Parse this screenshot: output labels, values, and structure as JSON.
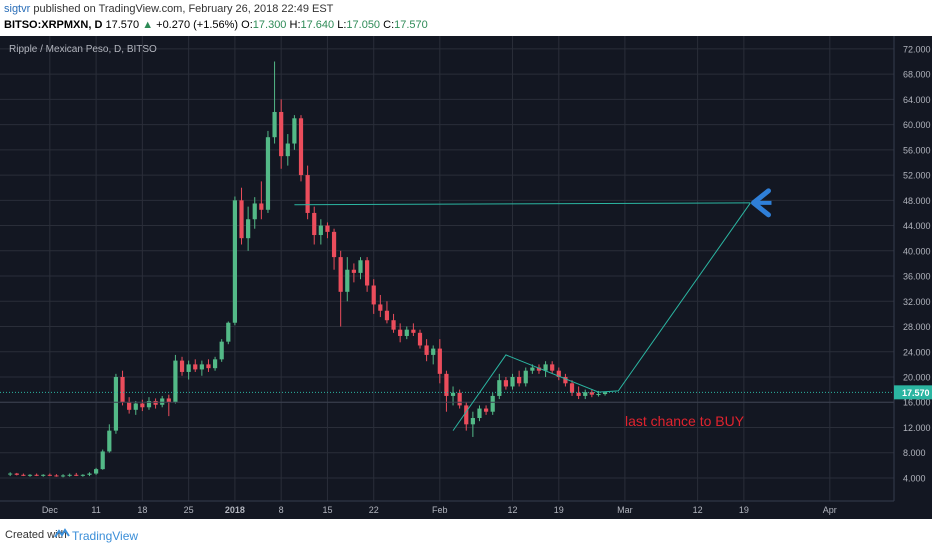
{
  "header": {
    "author": "sigtvr",
    "published_text": "published on TradingView.com, February 26, 2018 22:49 EST",
    "symbol": "BITSO:XRPMXN, D",
    "last": "17.570",
    "change": "+0.270 (+1.56%)",
    "open_label": "O:",
    "open": "17.300",
    "high_label": "H:",
    "high": "17.640",
    "low_label": "L:",
    "low": "17.050",
    "close_label": "C:",
    "close": "17.570"
  },
  "footer": {
    "created_with": "Created with",
    "brand": "TradingView"
  },
  "colors": {
    "background": "#131722",
    "up": "#53b987",
    "down": "#eb4d5c",
    "line": "#2bb5a1",
    "arrow": "#2f7fd8",
    "note": "#e0232e"
  },
  "chart_data": {
    "type": "candlestick",
    "title": "Ripple / Mexican Peso, D, BITSO",
    "ylim": [
      0,
      74
    ],
    "yticks": [
      "4.000",
      "8.000",
      "12.000",
      "16.000",
      "20.000",
      "24.000",
      "28.000",
      "32.000",
      "36.000",
      "40.000",
      "44.000",
      "48.000",
      "52.000",
      "56.000",
      "60.000",
      "64.000",
      "68.000",
      "72.000"
    ],
    "xticks": [
      "Dec",
      "11",
      "18",
      "25",
      "2018",
      "8",
      "15",
      "22",
      "Feb",
      "12",
      "19",
      "Mar",
      "12",
      "19",
      "Apr"
    ],
    "last_price_label": "17.570",
    "annotation_text": "last chance to BUY",
    "candles": [
      {
        "d": "2017-11-28",
        "o": 4.6,
        "h": 4.9,
        "l": 4.3,
        "c": 4.7
      },
      {
        "d": "2017-11-29",
        "o": 4.7,
        "h": 4.8,
        "l": 4.4,
        "c": 4.5
      },
      {
        "d": "2017-11-30",
        "o": 4.5,
        "h": 4.7,
        "l": 4.3,
        "c": 4.4
      },
      {
        "d": "2017-12-01",
        "o": 4.4,
        "h": 4.6,
        "l": 4.2,
        "c": 4.5
      },
      {
        "d": "2017-12-02",
        "o": 4.5,
        "h": 4.7,
        "l": 4.3,
        "c": 4.4
      },
      {
        "d": "2017-12-03",
        "o": 4.4,
        "h": 4.6,
        "l": 4.2,
        "c": 4.5
      },
      {
        "d": "2017-12-04",
        "o": 4.5,
        "h": 4.7,
        "l": 4.3,
        "c": 4.4
      },
      {
        "d": "2017-12-05",
        "o": 4.4,
        "h": 4.6,
        "l": 4.2,
        "c": 4.3
      },
      {
        "d": "2017-12-06",
        "o": 4.3,
        "h": 4.6,
        "l": 4.1,
        "c": 4.4
      },
      {
        "d": "2017-12-07",
        "o": 4.4,
        "h": 4.7,
        "l": 4.2,
        "c": 4.5
      },
      {
        "d": "2017-12-08",
        "o": 4.5,
        "h": 4.8,
        "l": 4.3,
        "c": 4.4
      },
      {
        "d": "2017-12-09",
        "o": 4.4,
        "h": 4.6,
        "l": 4.2,
        "c": 4.5
      },
      {
        "d": "2017-12-10",
        "o": 4.5,
        "h": 4.9,
        "l": 4.3,
        "c": 4.7
      },
      {
        "d": "2017-12-11",
        "o": 4.7,
        "h": 5.6,
        "l": 4.5,
        "c": 5.4
      },
      {
        "d": "2017-12-12",
        "o": 5.4,
        "h": 8.5,
        "l": 5.3,
        "c": 8.2
      },
      {
        "d": "2017-12-13",
        "o": 8.2,
        "h": 12.5,
        "l": 8.0,
        "c": 11.5
      },
      {
        "d": "2017-12-14",
        "o": 11.5,
        "h": 20.5,
        "l": 11.0,
        "c": 20.0
      },
      {
        "d": "2017-12-15",
        "o": 20.0,
        "h": 21.0,
        "l": 15.5,
        "c": 16.0
      },
      {
        "d": "2017-12-16",
        "o": 16.0,
        "h": 16.8,
        "l": 14.2,
        "c": 14.8
      },
      {
        "d": "2017-12-17",
        "o": 14.8,
        "h": 16.2,
        "l": 14.0,
        "c": 15.8
      },
      {
        "d": "2017-12-18",
        "o": 15.8,
        "h": 16.4,
        "l": 14.6,
        "c": 15.2
      },
      {
        "d": "2017-12-19",
        "o": 15.2,
        "h": 16.8,
        "l": 14.8,
        "c": 16.2
      },
      {
        "d": "2017-12-20",
        "o": 16.2,
        "h": 16.6,
        "l": 15.0,
        "c": 15.6
      },
      {
        "d": "2017-12-21",
        "o": 15.6,
        "h": 17.0,
        "l": 15.2,
        "c": 16.6
      },
      {
        "d": "2017-12-22",
        "o": 16.6,
        "h": 17.2,
        "l": 13.8,
        "c": 16.0
      },
      {
        "d": "2017-12-23",
        "o": 16.0,
        "h": 23.5,
        "l": 15.8,
        "c": 22.6
      },
      {
        "d": "2017-12-24",
        "o": 22.6,
        "h": 23.2,
        "l": 20.2,
        "c": 20.8
      },
      {
        "d": "2017-12-25",
        "o": 20.8,
        "h": 22.6,
        "l": 19.6,
        "c": 22.0
      },
      {
        "d": "2017-12-26",
        "o": 22.0,
        "h": 22.8,
        "l": 20.8,
        "c": 21.2
      },
      {
        "d": "2017-12-27",
        "o": 21.2,
        "h": 22.6,
        "l": 20.2,
        "c": 22.0
      },
      {
        "d": "2017-12-28",
        "o": 22.0,
        "h": 22.8,
        "l": 20.8,
        "c": 21.4
      },
      {
        "d": "2017-12-29",
        "o": 21.4,
        "h": 23.2,
        "l": 21.0,
        "c": 22.8
      },
      {
        "d": "2017-12-30",
        "o": 22.8,
        "h": 26.0,
        "l": 22.4,
        "c": 25.6
      },
      {
        "d": "2017-12-31",
        "o": 25.6,
        "h": 28.8,
        "l": 25.2,
        "c": 28.6
      },
      {
        "d": "2018-01-01",
        "o": 28.6,
        "h": 48.6,
        "l": 28.2,
        "c": 48.0
      },
      {
        "d": "2018-01-02",
        "o": 48.0,
        "h": 50.0,
        "l": 41.0,
        "c": 42.0
      },
      {
        "d": "2018-01-03",
        "o": 42.0,
        "h": 47.0,
        "l": 40.0,
        "c": 45.0
      },
      {
        "d": "2018-01-04",
        "o": 45.0,
        "h": 48.5,
        "l": 43.5,
        "c": 47.5
      },
      {
        "d": "2018-01-05",
        "o": 47.5,
        "h": 51.0,
        "l": 45.0,
        "c": 46.5
      },
      {
        "d": "2018-01-06",
        "o": 46.5,
        "h": 59.0,
        "l": 46.0,
        "c": 58.0
      },
      {
        "d": "2018-01-07",
        "o": 58.0,
        "h": 70.0,
        "l": 57.0,
        "c": 62.0
      },
      {
        "d": "2018-01-08",
        "o": 62.0,
        "h": 64.0,
        "l": 53.0,
        "c": 55.0
      },
      {
        "d": "2018-01-09",
        "o": 55.0,
        "h": 58.5,
        "l": 53.5,
        "c": 57.0
      },
      {
        "d": "2018-01-10",
        "o": 57.0,
        "h": 61.5,
        "l": 56.0,
        "c": 61.0
      },
      {
        "d": "2018-01-11",
        "o": 61.0,
        "h": 61.5,
        "l": 51.0,
        "c": 52.0
      },
      {
        "d": "2018-01-12",
        "o": 52.0,
        "h": 53.5,
        "l": 45.0,
        "c": 46.0
      },
      {
        "d": "2018-01-13",
        "o": 46.0,
        "h": 47.0,
        "l": 41.0,
        "c": 42.5
      },
      {
        "d": "2018-01-14",
        "o": 42.5,
        "h": 45.0,
        "l": 41.0,
        "c": 44.0
      },
      {
        "d": "2018-01-15",
        "o": 44.0,
        "h": 44.5,
        "l": 42.0,
        "c": 43.0
      },
      {
        "d": "2018-01-16",
        "o": 43.0,
        "h": 43.5,
        "l": 37.0,
        "c": 39.0
      },
      {
        "d": "2018-01-17",
        "o": 39.0,
        "h": 40.0,
        "l": 28.0,
        "c": 33.5
      },
      {
        "d": "2018-01-18",
        "o": 33.5,
        "h": 39.0,
        "l": 32.0,
        "c": 37.0
      },
      {
        "d": "2018-01-19",
        "o": 37.0,
        "h": 38.0,
        "l": 35.0,
        "c": 36.5
      },
      {
        "d": "2018-01-20",
        "o": 36.5,
        "h": 39.0,
        "l": 35.5,
        "c": 38.5
      },
      {
        "d": "2018-01-21",
        "o": 38.5,
        "h": 39.0,
        "l": 33.5,
        "c": 34.5
      },
      {
        "d": "2018-01-22",
        "o": 34.5,
        "h": 35.5,
        "l": 30.0,
        "c": 31.5
      },
      {
        "d": "2018-01-23",
        "o": 31.5,
        "h": 33.0,
        "l": 29.5,
        "c": 30.5
      },
      {
        "d": "2018-01-24",
        "o": 30.5,
        "h": 32.0,
        "l": 28.5,
        "c": 29.0
      },
      {
        "d": "2018-01-25",
        "o": 29.0,
        "h": 30.0,
        "l": 27.0,
        "c": 27.5
      },
      {
        "d": "2018-01-26",
        "o": 27.5,
        "h": 28.5,
        "l": 25.5,
        "c": 26.5
      },
      {
        "d": "2018-01-27",
        "o": 26.5,
        "h": 28.0,
        "l": 26.0,
        "c": 27.5
      },
      {
        "d": "2018-01-28",
        "o": 27.5,
        "h": 28.5,
        "l": 26.5,
        "c": 27.0
      },
      {
        "d": "2018-01-29",
        "o": 27.0,
        "h": 27.5,
        "l": 24.5,
        "c": 25.0
      },
      {
        "d": "2018-01-30",
        "o": 25.0,
        "h": 26.0,
        "l": 22.5,
        "c": 23.5
      },
      {
        "d": "2018-01-31",
        "o": 23.5,
        "h": 25.0,
        "l": 22.0,
        "c": 24.5
      },
      {
        "d": "2018-02-01",
        "o": 24.5,
        "h": 26.0,
        "l": 19.0,
        "c": 20.5
      },
      {
        "d": "2018-02-02",
        "o": 20.5,
        "h": 21.0,
        "l": 14.5,
        "c": 17.0
      },
      {
        "d": "2018-02-03",
        "o": 17.0,
        "h": 18.5,
        "l": 15.5,
        "c": 17.5
      },
      {
        "d": "2018-02-04",
        "o": 17.5,
        "h": 18.0,
        "l": 15.0,
        "c": 15.5
      },
      {
        "d": "2018-02-05",
        "o": 15.5,
        "h": 16.0,
        "l": 11.5,
        "c": 12.5
      },
      {
        "d": "2018-02-06",
        "o": 12.5,
        "h": 14.5,
        "l": 10.5,
        "c": 13.5
      },
      {
        "d": "2018-02-07",
        "o": 13.5,
        "h": 15.5,
        "l": 13.0,
        "c": 15.0
      },
      {
        "d": "2018-02-08",
        "o": 15.0,
        "h": 15.5,
        "l": 14.0,
        "c": 14.5
      },
      {
        "d": "2018-02-09",
        "o": 14.5,
        "h": 17.5,
        "l": 14.0,
        "c": 17.0
      },
      {
        "d": "2018-02-10",
        "o": 17.0,
        "h": 20.5,
        "l": 16.5,
        "c": 19.5
      },
      {
        "d": "2018-02-11",
        "o": 19.5,
        "h": 20.0,
        "l": 18.0,
        "c": 18.5
      },
      {
        "d": "2018-02-12",
        "o": 18.5,
        "h": 20.5,
        "l": 18.0,
        "c": 20.0
      },
      {
        "d": "2018-02-13",
        "o": 20.0,
        "h": 21.0,
        "l": 18.5,
        "c": 19.0
      },
      {
        "d": "2018-02-14",
        "o": 19.0,
        "h": 21.5,
        "l": 18.5,
        "c": 21.0
      },
      {
        "d": "2018-02-15",
        "o": 21.0,
        "h": 22.0,
        "l": 20.5,
        "c": 21.5
      },
      {
        "d": "2018-02-16",
        "o": 21.5,
        "h": 22.0,
        "l": 20.5,
        "c": 21.0
      },
      {
        "d": "2018-02-17",
        "o": 21.0,
        "h": 22.5,
        "l": 20.0,
        "c": 22.0
      },
      {
        "d": "2018-02-18",
        "o": 22.0,
        "h": 22.5,
        "l": 20.5,
        "c": 21.0
      },
      {
        "d": "2018-02-19",
        "o": 21.0,
        "h": 21.5,
        "l": 19.5,
        "c": 20.0
      },
      {
        "d": "2018-02-20",
        "o": 20.0,
        "h": 20.5,
        "l": 18.5,
        "c": 19.0
      },
      {
        "d": "2018-02-21",
        "o": 19.0,
        "h": 19.5,
        "l": 17.0,
        "c": 17.5
      },
      {
        "d": "2018-02-22",
        "o": 17.5,
        "h": 18.5,
        "l": 16.5,
        "c": 17.0
      },
      {
        "d": "2018-02-23",
        "o": 17.0,
        "h": 18.0,
        "l": 16.5,
        "c": 17.6
      },
      {
        "d": "2018-02-24",
        "o": 17.6,
        "h": 18.0,
        "l": 16.8,
        "c": 17.2
      },
      {
        "d": "2018-02-25",
        "o": 17.2,
        "h": 17.8,
        "l": 16.9,
        "c": 17.3
      },
      {
        "d": "2018-02-26",
        "o": 17.3,
        "h": 17.64,
        "l": 17.05,
        "c": 17.57
      }
    ]
  }
}
